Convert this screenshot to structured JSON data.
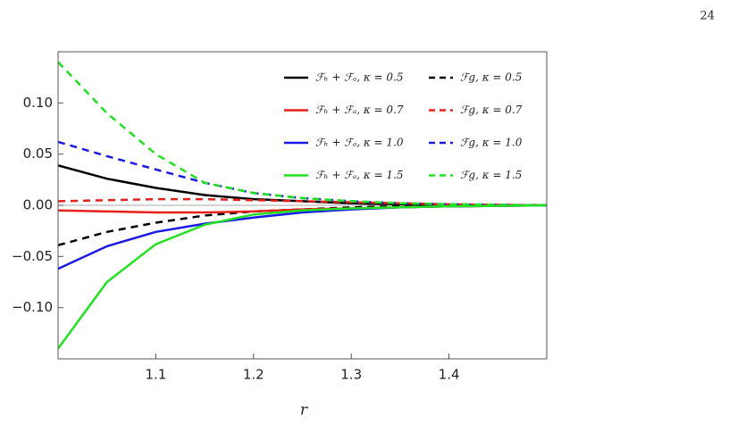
{
  "page_number": "24",
  "chart_data": {
    "type": "line",
    "x_label": "r",
    "x": [
      1.0,
      1.05,
      1.1,
      1.15,
      1.2,
      1.25,
      1.3,
      1.35,
      1.4,
      1.45,
      1.5
    ],
    "xlim": [
      1.0,
      1.5
    ],
    "xticks": [
      1.1,
      1.2,
      1.3,
      1.4
    ],
    "ylim": [
      -0.15,
      0.15
    ],
    "yticks": [
      {
        "value": 0.1,
        "label": "0.10"
      },
      {
        "value": 0.05,
        "label": "0.05"
      },
      {
        "value": 0,
        "label": "0.00"
      },
      {
        "value": -0.05,
        "label": "−0.05"
      },
      {
        "value": -0.1,
        "label": "−0.10"
      }
    ],
    "series": [
      {
        "name": "ℱₕ + ℱₐ, κ = 0.5",
        "color": "#000000",
        "dash": false,
        "values": [
          0.039,
          0.026,
          0.017,
          0.01,
          0.006,
          0.004,
          0.002,
          0.001,
          0.0005,
          0.0002,
          0
        ]
      },
      {
        "name": "ℱg, κ = 0.5",
        "color": "#000000",
        "dash": true,
        "values": [
          -0.039,
          -0.026,
          -0.017,
          -0.01,
          -0.006,
          -0.004,
          -0.002,
          -0.001,
          -0.0005,
          -0.0002,
          0
        ]
      },
      {
        "name": "ℱₕ + ℱₐ, κ = 0.7",
        "color": "#e8201c",
        "dash": false,
        "values": [
          -0.005,
          -0.006,
          -0.007,
          -0.007,
          -0.006,
          -0.004,
          -0.003,
          -0.002,
          -0.001,
          -0.0005,
          0
        ]
      },
      {
        "name": "ℱg, κ = 0.7",
        "color": "#e8201c",
        "dash": true,
        "values": [
          0.004,
          0.005,
          0.006,
          0.006,
          0.005,
          0.004,
          0.003,
          0.002,
          0.001,
          0.0005,
          0
        ]
      },
      {
        "name": "ℱₕ + ℱₐ, κ = 1.0",
        "color": "#1a1ae6",
        "dash": false,
        "values": [
          -0.062,
          -0.04,
          -0.026,
          -0.018,
          -0.012,
          -0.007,
          -0.004,
          -0.002,
          -0.001,
          -0.0005,
          0
        ]
      },
      {
        "name": "ℱg, κ = 1.0",
        "color": "#1a1ae6",
        "dash": true,
        "values": [
          0.062,
          0.048,
          0.035,
          0.022,
          0.012,
          0.007,
          0.004,
          0.002,
          0.001,
          0.0005,
          0
        ]
      },
      {
        "name": "ℱₕ + ℱₐ, κ = 1.5",
        "color": "#22e022",
        "dash": false,
        "values": [
          -0.14,
          -0.075,
          -0.038,
          -0.019,
          -0.009,
          -0.005,
          -0.003,
          -0.002,
          -0.001,
          -0.0005,
          0
        ]
      },
      {
        "name": "ℱg, κ = 1.5",
        "color": "#22e022",
        "dash": true,
        "values": [
          0.14,
          0.09,
          0.05,
          0.022,
          0.012,
          0.007,
          0.004,
          0.002,
          0.001,
          0.0005,
          0
        ]
      }
    ]
  }
}
